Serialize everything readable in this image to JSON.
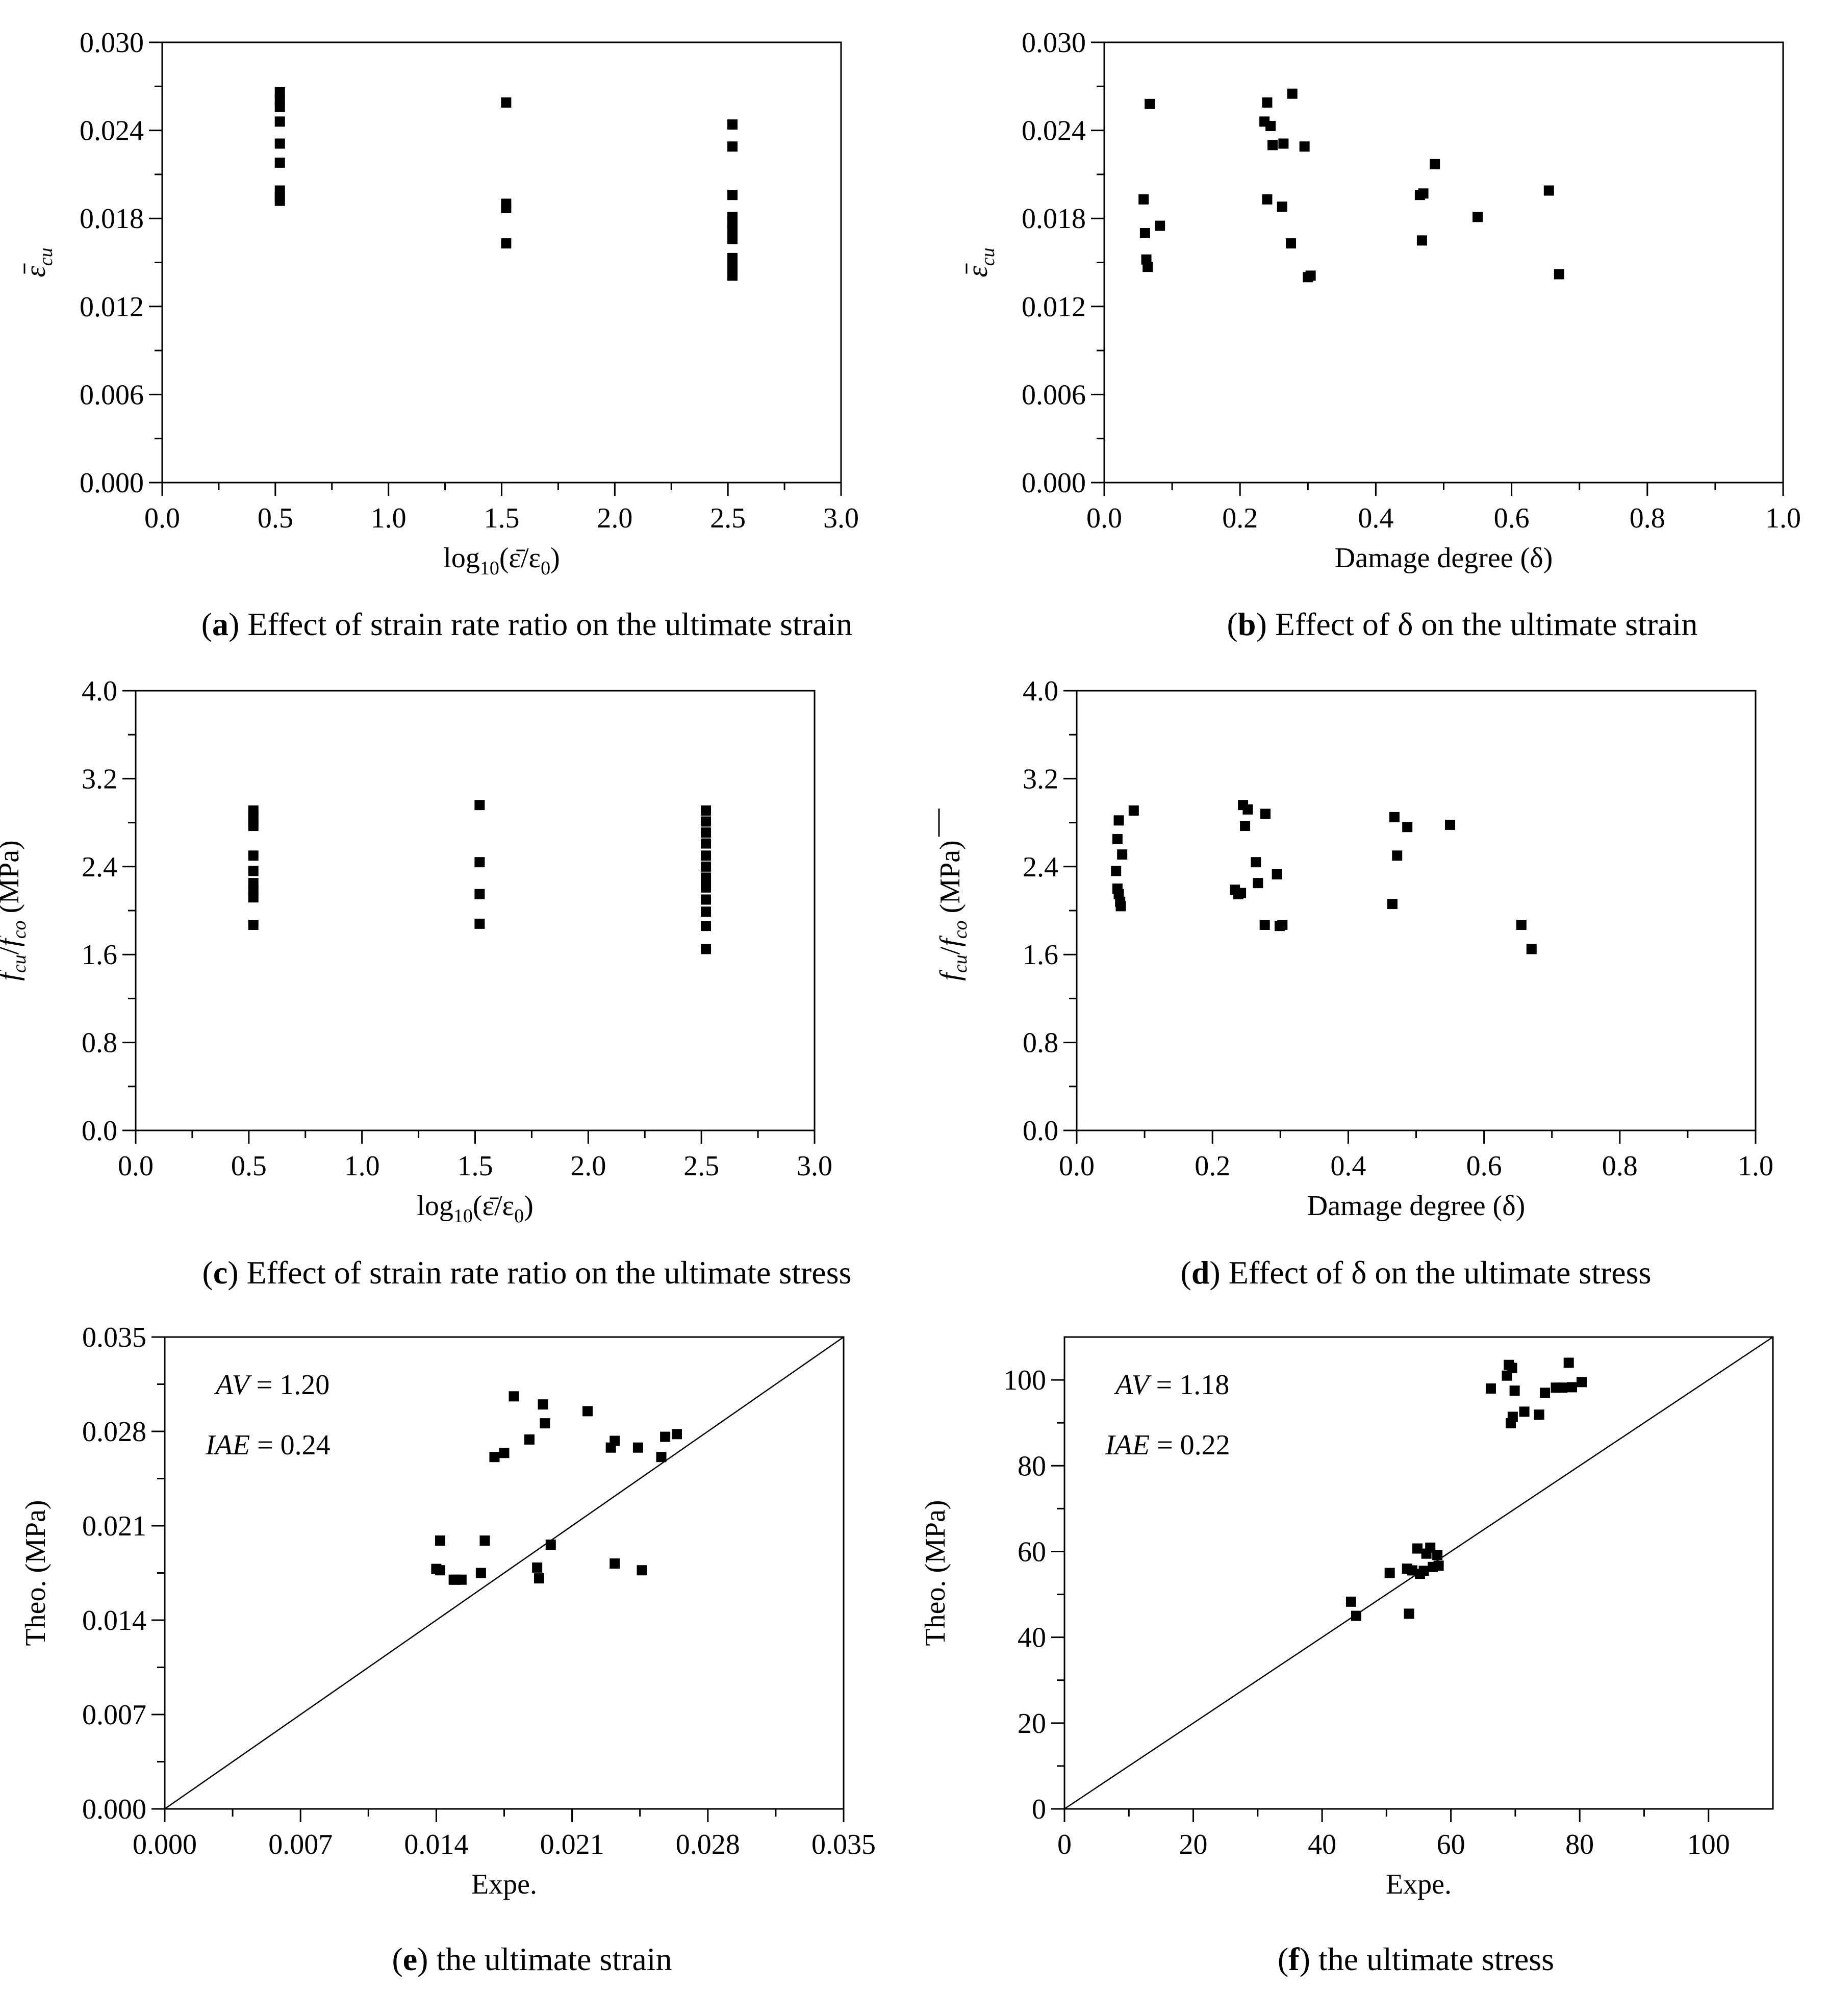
{
  "chart_data": [
    {
      "id": "a",
      "type": "scatter",
      "caption": {
        "letter": "a",
        "text": " Effect of strain rate ratio on the ultimate strain"
      },
      "ylabel_symbol": "ε",
      "ylabel_sub": "cu",
      "ylabel_bar": true,
      "xlabel_parts": {
        "pre": "log",
        "sub": "10",
        "post": "(ε̄/ε",
        "sub2": "0",
        "end": ")"
      },
      "xlim": [
        0,
        3.0
      ],
      "ylim": [
        0,
        0.03
      ],
      "xticks": [
        0,
        0.5,
        1.0,
        1.5,
        2.0,
        2.5,
        3.0
      ],
      "xtick_labels": [
        "0.0",
        "0.5",
        "1.0",
        "1.5",
        "2.0",
        "2.5",
        "3.0"
      ],
      "yticks": [
        0,
        0.006,
        0.012,
        0.018,
        0.024,
        0.03
      ],
      "ytick_labels": [
        "0.000",
        "0.006",
        "0.012",
        "0.018",
        "0.024",
        "0.030"
      ],
      "points": [
        [
          0.52,
          0.0266
        ],
        [
          0.52,
          0.0261
        ],
        [
          0.52,
          0.0256
        ],
        [
          0.52,
          0.0246
        ],
        [
          0.52,
          0.0231
        ],
        [
          0.52,
          0.0218
        ],
        [
          0.52,
          0.0199
        ],
        [
          0.52,
          0.0195
        ],
        [
          0.52,
          0.0192
        ],
        [
          1.52,
          0.0259
        ],
        [
          1.52,
          0.019
        ],
        [
          1.52,
          0.0187
        ],
        [
          1.52,
          0.0163
        ],
        [
          2.52,
          0.0244
        ],
        [
          2.52,
          0.0229
        ],
        [
          2.52,
          0.0196
        ],
        [
          2.52,
          0.0181
        ],
        [
          2.52,
          0.0177
        ],
        [
          2.52,
          0.0172
        ],
        [
          2.52,
          0.0166
        ],
        [
          2.52,
          0.0153
        ],
        [
          2.52,
          0.0147
        ],
        [
          2.52,
          0.0141
        ]
      ]
    },
    {
      "id": "b",
      "type": "scatter",
      "caption": {
        "letter": "b",
        "text": " Effect of δ on the ultimate strain"
      },
      "ylabel_symbol": "ε",
      "ylabel_sub": "cu",
      "ylabel_bar": true,
      "xlabel": "Damage degree (δ)",
      "xlim": [
        0,
        1.0
      ],
      "ylim": [
        0,
        0.03
      ],
      "xticks": [
        0,
        0.2,
        0.4,
        0.6,
        0.8,
        1.0
      ],
      "xtick_labels": [
        "0.0",
        "0.2",
        "0.4",
        "0.6",
        "0.8",
        "1.0"
      ],
      "yticks": [
        0,
        0.006,
        0.012,
        0.018,
        0.024,
        0.03
      ],
      "ytick_labels": [
        "0.000",
        "0.006",
        "0.012",
        "0.018",
        "0.024",
        "0.030"
      ],
      "points": [
        [
          0.058,
          0.0193
        ],
        [
          0.06,
          0.017
        ],
        [
          0.062,
          0.0152
        ],
        [
          0.064,
          0.0147
        ],
        [
          0.067,
          0.0258
        ],
        [
          0.082,
          0.0175
        ],
        [
          0.236,
          0.0246
        ],
        [
          0.24,
          0.0259
        ],
        [
          0.24,
          0.0193
        ],
        [
          0.245,
          0.0243
        ],
        [
          0.248,
          0.023
        ],
        [
          0.262,
          0.0188
        ],
        [
          0.264,
          0.0231
        ],
        [
          0.275,
          0.0163
        ],
        [
          0.277,
          0.0265
        ],
        [
          0.295,
          0.0229
        ],
        [
          0.3,
          0.014
        ],
        [
          0.304,
          0.0141
        ],
        [
          0.465,
          0.0196
        ],
        [
          0.47,
          0.0197
        ],
        [
          0.468,
          0.0165
        ],
        [
          0.487,
          0.0217
        ],
        [
          0.55,
          0.0181
        ],
        [
          0.655,
          0.0199
        ],
        [
          0.67,
          0.0142
        ]
      ]
    },
    {
      "id": "c",
      "type": "scatter",
      "caption": {
        "letter": "c",
        "text": " Effect of strain rate ratio on the ultimate stress"
      },
      "ylabel_parts": {
        "a": "f",
        "a_sub": "cu",
        "sep": "/",
        "b": "f",
        "b_sub": "co",
        "unit": " (MPa)"
      },
      "ylabel_bar": true,
      "xlabel_parts": {
        "pre": "log",
        "sub": "10",
        "post": "(ε̄/ε",
        "sub2": "0",
        "end": ")"
      },
      "xlim": [
        0,
        3.0
      ],
      "ylim": [
        0,
        4.0
      ],
      "xticks": [
        0,
        0.5,
        1.0,
        1.5,
        2.0,
        2.5,
        3.0
      ],
      "xtick_labels": [
        "0.0",
        "0.5",
        "1.0",
        "1.5",
        "2.0",
        "2.5",
        "3.0"
      ],
      "yticks": [
        0,
        0.8,
        1.6,
        2.4,
        3.2,
        4.0
      ],
      "ytick_labels": [
        "0.0",
        "0.8",
        "1.6",
        "2.4",
        "3.2",
        "4.0"
      ],
      "points": [
        [
          0.52,
          2.91
        ],
        [
          0.52,
          2.86
        ],
        [
          0.52,
          2.81
        ],
        [
          0.52,
          2.77
        ],
        [
          0.52,
          2.5
        ],
        [
          0.52,
          2.36
        ],
        [
          0.52,
          2.25
        ],
        [
          0.52,
          2.18
        ],
        [
          0.52,
          2.12
        ],
        [
          0.52,
          1.87
        ],
        [
          1.52,
          2.96
        ],
        [
          1.52,
          2.44
        ],
        [
          1.52,
          2.15
        ],
        [
          1.52,
          1.88
        ],
        [
          2.52,
          2.91
        ],
        [
          2.52,
          2.81
        ],
        [
          2.52,
          2.71
        ],
        [
          2.52,
          2.61
        ],
        [
          2.52,
          2.5
        ],
        [
          2.52,
          2.4
        ],
        [
          2.52,
          2.3
        ],
        [
          2.52,
          2.21
        ],
        [
          2.52,
          2.1
        ],
        [
          2.52,
          1.99
        ],
        [
          2.52,
          1.86
        ],
        [
          2.52,
          1.65
        ]
      ]
    },
    {
      "id": "d",
      "type": "scatter",
      "caption": {
        "letter": "d",
        "text": " Effect of δ on the ultimate stress"
      },
      "ylabel_parts": {
        "a": "f",
        "a_sub": "cu",
        "sep": "/",
        "b": "f",
        "b_sub": "co",
        "unit": " (MPa)"
      },
      "ylabel_bar": true,
      "xlabel": "Damage degree  (δ)",
      "xlim": [
        0,
        1.0
      ],
      "ylim": [
        0,
        4.0
      ],
      "xticks": [
        0,
        0.2,
        0.4,
        0.6,
        0.8,
        1.0
      ],
      "xtick_labels": [
        "0.0",
        "0.2",
        "0.4",
        "0.6",
        "0.8",
        "1.0"
      ],
      "yticks": [
        0,
        0.8,
        1.6,
        2.4,
        3.2,
        4.0
      ],
      "ytick_labels": [
        "0.0",
        "0.8",
        "1.6",
        "2.4",
        "3.2",
        "4.0"
      ],
      "points": [
        [
          0.058,
          2.36
        ],
        [
          0.06,
          2.2
        ],
        [
          0.062,
          2.15
        ],
        [
          0.064,
          2.08
        ],
        [
          0.065,
          2.04
        ],
        [
          0.06,
          2.65
        ],
        [
          0.062,
          2.82
        ],
        [
          0.067,
          2.51
        ],
        [
          0.084,
          2.91
        ],
        [
          0.233,
          2.19
        ],
        [
          0.238,
          2.15
        ],
        [
          0.242,
          2.16
        ],
        [
          0.245,
          2.96
        ],
        [
          0.248,
          2.77
        ],
        [
          0.252,
          2.92
        ],
        [
          0.264,
          2.44
        ],
        [
          0.267,
          2.25
        ],
        [
          0.277,
          1.87
        ],
        [
          0.278,
          2.88
        ],
        [
          0.295,
          2.33
        ],
        [
          0.299,
          1.86
        ],
        [
          0.303,
          1.87
        ],
        [
          0.465,
          2.06
        ],
        [
          0.468,
          2.85
        ],
        [
          0.472,
          2.5
        ],
        [
          0.487,
          2.76
        ],
        [
          0.55,
          2.78
        ],
        [
          0.655,
          1.87
        ],
        [
          0.67,
          1.65
        ]
      ]
    },
    {
      "id": "e",
      "type": "scatter",
      "caption": {
        "letter": "e",
        "text": " the ultimate strain"
      },
      "ylabel": "Theo. (MPa)",
      "xlabel": "Expe.",
      "xlim": [
        0,
        0.035
      ],
      "ylim": [
        0,
        0.035
      ],
      "xticks": [
        0,
        0.007,
        0.014,
        0.021,
        0.028,
        0.035
      ],
      "xtick_labels": [
        "0.000",
        "0.007",
        "0.014",
        "0.021",
        "0.028",
        "0.035"
      ],
      "yticks": [
        0,
        0.007,
        0.014,
        0.021,
        0.028,
        0.035
      ],
      "ytick_labels": [
        "0.000",
        "0.007",
        "0.014",
        "0.021",
        "0.028",
        "0.035"
      ],
      "diagonal": true,
      "stats": {
        "av_label": "AV",
        "av_value": " = 1.20",
        "iae_label": "IAE",
        "iae_value": " = 0.24"
      },
      "points": [
        [
          0.014,
          0.0178
        ],
        [
          0.0142,
          0.0177
        ],
        [
          0.0142,
          0.0199
        ],
        [
          0.0149,
          0.017
        ],
        [
          0.015,
          0.017
        ],
        [
          0.0153,
          0.017
        ],
        [
          0.0163,
          0.0175
        ],
        [
          0.0165,
          0.0199
        ],
        [
          0.017,
          0.0261
        ],
        [
          0.0175,
          0.0264
        ],
        [
          0.018,
          0.0306
        ],
        [
          0.0188,
          0.0274
        ],
        [
          0.0192,
          0.0179
        ],
        [
          0.0193,
          0.0171
        ],
        [
          0.0195,
          0.03
        ],
        [
          0.0196,
          0.0286
        ],
        [
          0.0199,
          0.0196
        ],
        [
          0.0218,
          0.0295
        ],
        [
          0.023,
          0.0268
        ],
        [
          0.0232,
          0.0273
        ],
        [
          0.0232,
          0.0182
        ],
        [
          0.0244,
          0.0268
        ],
        [
          0.0246,
          0.0177
        ],
        [
          0.0256,
          0.0261
        ],
        [
          0.0258,
          0.0276
        ],
        [
          0.0264,
          0.0278
        ]
      ]
    },
    {
      "id": "f",
      "type": "scatter",
      "caption": {
        "letter": "f",
        "text": " the ultimate stress"
      },
      "ylabel": "Theo. (MPa)",
      "xlabel": "Expe.",
      "xlim": [
        0,
        110
      ],
      "ylim": [
        0,
        110
      ],
      "xticks": [
        0,
        20,
        40,
        60,
        80,
        100
      ],
      "xtick_labels": [
        "0",
        "20",
        "40",
        "60",
        "80",
        "100"
      ],
      "yticks": [
        0,
        20,
        40,
        60,
        80,
        100
      ],
      "ytick_labels": [
        "0",
        "20",
        "40",
        "60",
        "80",
        "100"
      ],
      "diagonal": true,
      "stats": {
        "av_label": "AV",
        "av_value": " = 1.18",
        "iae_label": "IAE",
        "iae_value": " = 0.22"
      },
      "points": [
        [
          44.5,
          48.3
        ],
        [
          45.3,
          45.0
        ],
        [
          50.5,
          55.0
        ],
        [
          53.2,
          56.0
        ],
        [
          53.5,
          45.5
        ],
        [
          54.0,
          55.6
        ],
        [
          54.8,
          60.7
        ],
        [
          55.2,
          54.8
        ],
        [
          55.8,
          55.5
        ],
        [
          56.2,
          59.5
        ],
        [
          56.8,
          60.9
        ],
        [
          57.2,
          56.4
        ],
        [
          57.9,
          59.2
        ],
        [
          58.1,
          56.7
        ],
        [
          66.2,
          98.0
        ],
        [
          68.7,
          101.0
        ],
        [
          69.0,
          103.5
        ],
        [
          69.3,
          89.9
        ],
        [
          69.5,
          102.8
        ],
        [
          69.6,
          91.4
        ],
        [
          69.9,
          97.5
        ],
        [
          71.4,
          92.6
        ],
        [
          73.7,
          91.9
        ],
        [
          74.6,
          97.0
        ],
        [
          76.3,
          98.2
        ],
        [
          77.3,
          98.2
        ],
        [
          78.3,
          104.0
        ],
        [
          78.8,
          98.3
        ],
        [
          80.3,
          99.5
        ]
      ]
    }
  ]
}
